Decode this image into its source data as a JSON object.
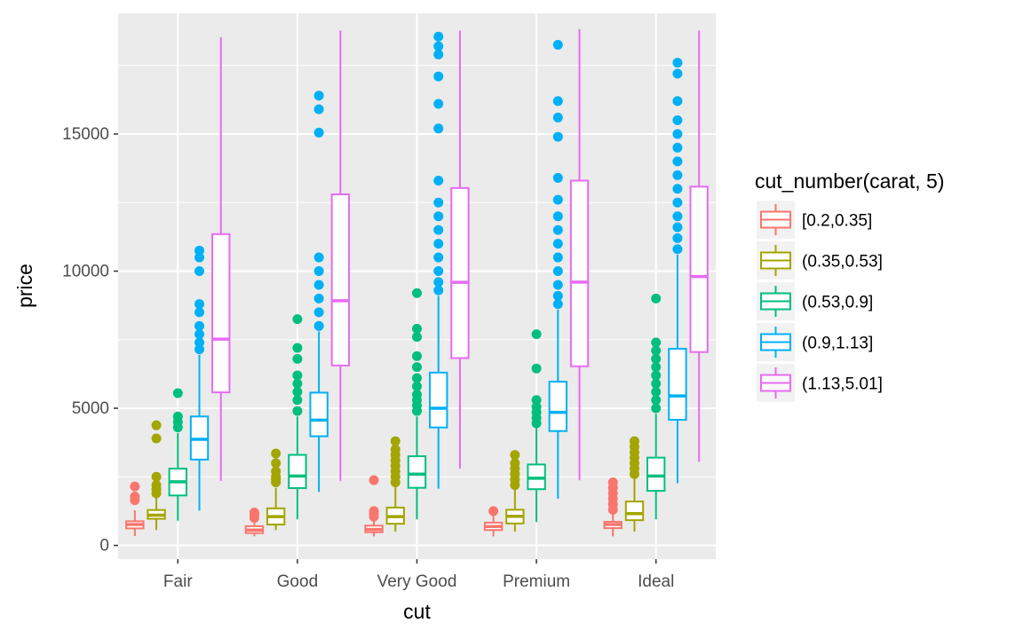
{
  "chart_data": {
    "type": "boxplot",
    "xlabel": "cut",
    "ylabel": "price",
    "categories": [
      "Fair",
      "Good",
      "Very Good",
      "Premium",
      "Ideal"
    ],
    "ylim": [
      -500,
      19400
    ],
    "yticks": [
      0,
      5000,
      10000,
      15000
    ],
    "ytick_labels": [
      "0",
      "5000",
      "10000",
      "15000"
    ],
    "grid": true,
    "legend": {
      "title": "cut_number(carat, 5)",
      "placement": "right",
      "entries": [
        "[0.2,0.35]",
        "(0.35,0.53]",
        "(0.53,0.9]",
        "(0.9,1.13]",
        "(1.13,5.01]"
      ]
    },
    "colors": [
      "#F8766D",
      "#A3A500",
      "#00BF7D",
      "#00B0F6",
      "#E76BF3"
    ],
    "series": [
      {
        "name": "[0.2,0.35]",
        "boxes": [
          {
            "whisker_low": 340,
            "q1": 620,
            "median": 760,
            "q3": 880,
            "whisker_high": 1280,
            "outliers": [
              1650,
              1780,
              2150
            ]
          },
          {
            "whisker_low": 330,
            "q1": 450,
            "median": 560,
            "q3": 700,
            "whisker_high": 960,
            "outliers": [
              1000,
              1100,
              1200
            ]
          },
          {
            "whisker_low": 330,
            "q1": 480,
            "median": 580,
            "q3": 720,
            "whisker_high": 1000,
            "outliers": [
              1050,
              1150,
              1250,
              2380
            ]
          },
          {
            "whisker_low": 330,
            "q1": 560,
            "median": 690,
            "q3": 830,
            "whisker_high": 1200,
            "outliers": [
              1250
            ]
          },
          {
            "whisker_low": 330,
            "q1": 630,
            "median": 760,
            "q3": 860,
            "whisker_high": 1250,
            "outliers": [
              1300,
              1500,
              1700,
              1900,
              2100,
              2300
            ]
          }
        ]
      },
      {
        "name": "(0.35,0.53]",
        "boxes": [
          {
            "whisker_low": 560,
            "q1": 970,
            "median": 1100,
            "q3": 1290,
            "whisker_high": 1800,
            "outliers": [
              1900,
              2050,
              2200,
              2500,
              3900,
              4380
            ]
          },
          {
            "whisker_low": 560,
            "q1": 760,
            "median": 1050,
            "q3": 1350,
            "whisker_high": 2100,
            "outliers": [
              2300,
              2400,
              2500,
              2700,
              3000,
              3350
            ]
          },
          {
            "whisker_low": 500,
            "q1": 790,
            "median": 1050,
            "q3": 1380,
            "whisker_high": 2200,
            "outliers": [
              2300,
              2500,
              2700,
              2900,
              3100,
              3300,
              3500,
              3800
            ]
          },
          {
            "whisker_low": 500,
            "q1": 800,
            "median": 1060,
            "q3": 1300,
            "whisker_high": 2100,
            "outliers": [
              2200,
              2400,
              2600,
              2800,
              3000,
              3300
            ]
          },
          {
            "whisker_low": 500,
            "q1": 920,
            "median": 1160,
            "q3": 1600,
            "whisker_high": 2500,
            "outliers": [
              2600,
              2800,
              3000,
              3200,
              3400,
              3600,
              3800
            ]
          }
        ]
      },
      {
        "name": "(0.53,0.9]",
        "boxes": [
          {
            "whisker_low": 900,
            "q1": 1820,
            "median": 2320,
            "q3": 2800,
            "whisker_high": 4100,
            "outliers": [
              4300,
              4500,
              4700,
              5550
            ]
          },
          {
            "whisker_low": 950,
            "q1": 2090,
            "median": 2530,
            "q3": 3300,
            "whisker_high": 4700,
            "outliers": [
              4900,
              5300,
              5600,
              5900,
              6200,
              6800,
              7200,
              8250
            ]
          },
          {
            "whisker_low": 950,
            "q1": 2100,
            "median": 2600,
            "q3": 3250,
            "whisker_high": 4700,
            "outliers": [
              4900,
              5100,
              5300,
              5500,
              5800,
              6100,
              6500,
              6900,
              7600,
              7900,
              9200
            ]
          },
          {
            "whisker_low": 850,
            "q1": 2050,
            "median": 2450,
            "q3": 2950,
            "whisker_high": 4300,
            "outliers": [
              4450,
              4650,
              4850,
              5050,
              5300,
              6450,
              7700
            ]
          },
          {
            "whisker_low": 950,
            "q1": 1990,
            "median": 2530,
            "q3": 3200,
            "whisker_high": 4800,
            "outliers": [
              5000,
              5300,
              5600,
              5900,
              6200,
              6500,
              6800,
              7100,
              7400,
              9000
            ]
          }
        ]
      },
      {
        "name": "(0.9,1.13]",
        "boxes": [
          {
            "whisker_low": 1270,
            "q1": 3130,
            "median": 3870,
            "q3": 4700,
            "whisker_high": 6950,
            "outliers": [
              7150,
              7400,
              7700,
              8000,
              8500,
              8800,
              10000,
              10500,
              10750
            ]
          },
          {
            "whisker_low": 1950,
            "q1": 3980,
            "median": 4570,
            "q3": 5570,
            "whisker_high": 7800,
            "outliers": [
              8000,
              8500,
              9000,
              9500,
              10000,
              10500,
              15050,
              15900,
              16400
            ]
          },
          {
            "whisker_low": 2070,
            "q1": 4300,
            "median": 5000,
            "q3": 6300,
            "whisker_high": 9100,
            "outliers": [
              9300,
              9600,
              10000,
              10500,
              11000,
              11500,
              12000,
              12500,
              13300,
              15200,
              16100,
              17100,
              17900,
              18200,
              18550
            ]
          },
          {
            "whisker_low": 1700,
            "q1": 4170,
            "median": 4850,
            "q3": 5970,
            "whisker_high": 8600,
            "outliers": [
              8800,
              9100,
              9500,
              10000,
              10500,
              11000,
              11500,
              12000,
              12600,
              13400,
              14900,
              15600,
              16200,
              18250
            ]
          },
          {
            "whisker_low": 2270,
            "q1": 4580,
            "median": 5450,
            "q3": 7170,
            "whisker_high": 10600,
            "outliers": [
              10800,
              11200,
              11600,
              12000,
              12500,
              13000,
              13500,
              14000,
              14500,
              15000,
              15500,
              16200,
              17200,
              17600
            ]
          }
        ]
      },
      {
        "name": "(1.13,5.01]",
        "boxes": [
          {
            "whisker_low": 2350,
            "q1": 5580,
            "median": 7520,
            "q3": 11350,
            "whisker_high": 18530,
            "outliers": []
          },
          {
            "whisker_low": 2350,
            "q1": 6560,
            "median": 8920,
            "q3": 12800,
            "whisker_high": 18770,
            "outliers": []
          },
          {
            "whisker_low": 2800,
            "q1": 6830,
            "median": 9590,
            "q3": 13030,
            "whisker_high": 18770,
            "outliers": []
          },
          {
            "whisker_low": 2370,
            "q1": 6530,
            "median": 9600,
            "q3": 13300,
            "whisker_high": 18820,
            "outliers": []
          },
          {
            "whisker_low": 3050,
            "q1": 7050,
            "median": 9800,
            "q3": 13080,
            "whisker_high": 18770,
            "outliers": []
          }
        ]
      }
    ]
  }
}
